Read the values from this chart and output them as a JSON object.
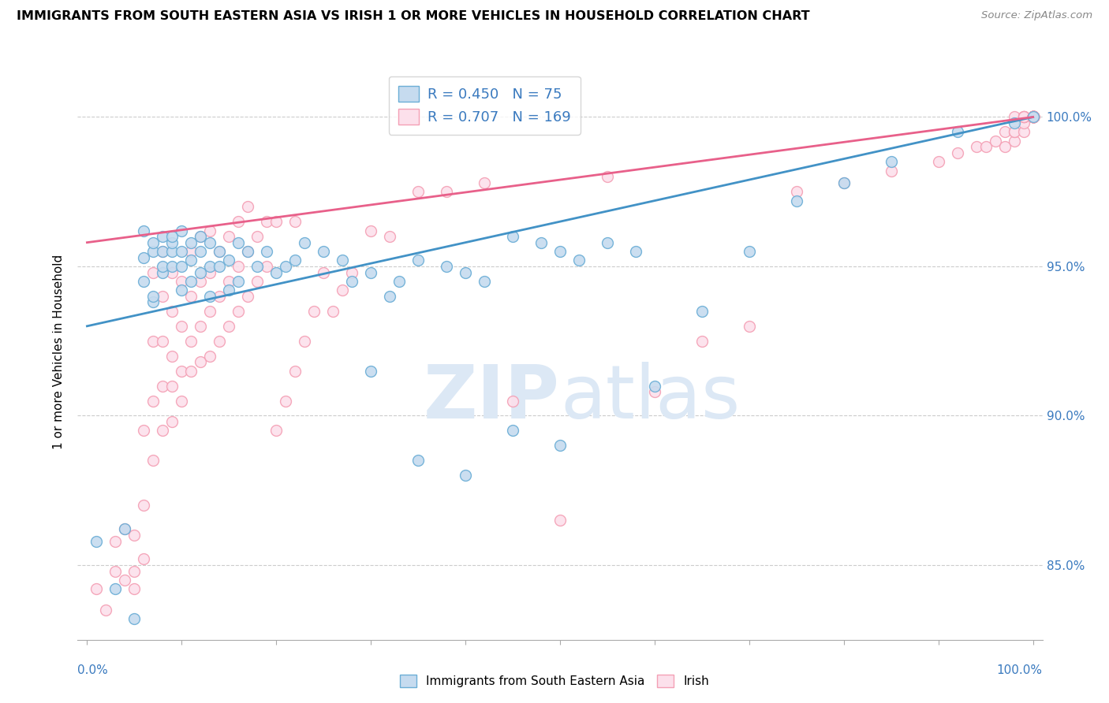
{
  "title": "IMMIGRANTS FROM SOUTH EASTERN ASIA VS IRISH 1 OR MORE VEHICLES IN HOUSEHOLD CORRELATION CHART",
  "source": "Source: ZipAtlas.com",
  "ylabel": "1 or more Vehicles in Household",
  "yticks": [
    85.0,
    90.0,
    95.0,
    100.0
  ],
  "ytick_labels": [
    "85.0%",
    "90.0%",
    "95.0%",
    "100.0%"
  ],
  "ymin": 82.5,
  "ymax": 101.8,
  "xmin": -0.01,
  "xmax": 1.01,
  "legend_blue_r": "0.450",
  "legend_blue_n": "75",
  "legend_pink_r": "0.707",
  "legend_pink_n": "169",
  "watermark_zip": "ZIP",
  "watermark_atlas": "atlas",
  "watermark_color": "#d0e4f5",
  "blue_color": "#6baed6",
  "blue_fill": "#c6dbef",
  "pink_color": "#f4a0b5",
  "pink_fill": "#fce0eb",
  "line_blue": "#4292c6",
  "line_pink": "#e8608a",
  "blue_line_x0": 0.0,
  "blue_line_y0": 93.0,
  "blue_line_x1": 1.0,
  "blue_line_y1": 100.0,
  "pink_line_x0": 0.0,
  "pink_line_y0": 95.8,
  "pink_line_x1": 1.0,
  "pink_line_y1": 100.0,
  "blue_scatter_x": [
    0.01,
    0.03,
    0.04,
    0.05,
    0.06,
    0.06,
    0.06,
    0.07,
    0.07,
    0.07,
    0.07,
    0.08,
    0.08,
    0.08,
    0.08,
    0.09,
    0.09,
    0.09,
    0.09,
    0.1,
    0.1,
    0.1,
    0.1,
    0.11,
    0.11,
    0.11,
    0.12,
    0.12,
    0.12,
    0.13,
    0.13,
    0.13,
    0.14,
    0.14,
    0.15,
    0.15,
    0.16,
    0.16,
    0.17,
    0.18,
    0.19,
    0.2,
    0.21,
    0.22,
    0.23,
    0.25,
    0.27,
    0.28,
    0.3,
    0.32,
    0.33,
    0.35,
    0.38,
    0.4,
    0.42,
    0.45,
    0.48,
    0.5,
    0.52,
    0.55,
    0.58,
    0.3,
    0.35,
    0.4,
    0.45,
    0.5,
    0.6,
    0.65,
    0.7,
    0.75,
    0.8,
    0.85,
    0.92,
    0.98,
    1.0
  ],
  "blue_scatter_y": [
    85.8,
    84.2,
    86.2,
    83.2,
    95.3,
    94.5,
    96.2,
    93.8,
    95.5,
    94.0,
    95.8,
    94.8,
    95.5,
    95.0,
    96.0,
    95.0,
    95.5,
    95.8,
    96.0,
    94.2,
    95.0,
    95.5,
    96.2,
    94.5,
    95.2,
    95.8,
    94.8,
    95.5,
    96.0,
    94.0,
    95.0,
    95.8,
    95.0,
    95.5,
    94.2,
    95.2,
    94.5,
    95.8,
    95.5,
    95.0,
    95.5,
    94.8,
    95.0,
    95.2,
    95.8,
    95.5,
    95.2,
    94.5,
    94.8,
    94.0,
    94.5,
    95.2,
    95.0,
    94.8,
    94.5,
    96.0,
    95.8,
    95.5,
    95.2,
    95.8,
    95.5,
    91.5,
    88.5,
    88.0,
    89.5,
    89.0,
    91.0,
    93.5,
    95.5,
    97.2,
    97.8,
    98.5,
    99.5,
    99.8,
    100.0
  ],
  "pink_scatter_x": [
    0.01,
    0.02,
    0.03,
    0.03,
    0.04,
    0.04,
    0.05,
    0.05,
    0.05,
    0.06,
    0.06,
    0.06,
    0.07,
    0.07,
    0.07,
    0.07,
    0.08,
    0.08,
    0.08,
    0.08,
    0.08,
    0.09,
    0.09,
    0.09,
    0.09,
    0.09,
    0.1,
    0.1,
    0.1,
    0.1,
    0.11,
    0.11,
    0.11,
    0.11,
    0.12,
    0.12,
    0.12,
    0.12,
    0.13,
    0.13,
    0.13,
    0.13,
    0.14,
    0.14,
    0.14,
    0.15,
    0.15,
    0.15,
    0.16,
    0.16,
    0.16,
    0.17,
    0.17,
    0.17,
    0.18,
    0.18,
    0.19,
    0.19,
    0.2,
    0.2,
    0.21,
    0.22,
    0.22,
    0.23,
    0.24,
    0.25,
    0.26,
    0.27,
    0.28,
    0.3,
    0.32,
    0.35,
    0.38,
    0.42,
    0.45,
    0.5,
    0.55,
    0.6,
    0.65,
    0.7,
    0.75,
    0.8,
    0.85,
    0.9,
    0.92,
    0.94,
    0.95,
    0.96,
    0.97,
    0.97,
    0.98,
    0.98,
    0.98,
    0.98,
    0.99,
    0.99,
    0.99,
    0.99,
    0.99,
    0.99,
    0.99,
    1.0,
    1.0,
    1.0,
    1.0,
    1.0,
    1.0,
    1.0,
    1.0,
    1.0,
    1.0,
    1.0,
    1.0,
    1.0,
    1.0,
    1.0,
    1.0,
    1.0,
    1.0,
    1.0,
    1.0,
    1.0,
    1.0,
    1.0,
    1.0,
    1.0,
    1.0,
    1.0,
    1.0,
    1.0,
    1.0,
    1.0,
    1.0,
    1.0,
    1.0,
    1.0,
    1.0,
    1.0,
    1.0,
    1.0,
    1.0,
    1.0,
    1.0,
    1.0,
    1.0,
    1.0,
    1.0,
    1.0,
    1.0,
    1.0,
    1.0,
    1.0,
    1.0,
    1.0,
    1.0,
    1.0,
    1.0,
    1.0,
    1.0,
    1.0,
    1.0,
    1.0,
    1.0,
    1.0
  ],
  "pink_scatter_y": [
    84.2,
    83.5,
    84.8,
    85.8,
    84.5,
    86.2,
    84.8,
    86.0,
    84.2,
    85.2,
    87.0,
    89.5,
    88.5,
    90.5,
    92.5,
    94.8,
    89.5,
    91.0,
    92.5,
    94.0,
    95.5,
    89.8,
    91.0,
    92.0,
    93.5,
    94.8,
    90.5,
    91.5,
    93.0,
    94.5,
    91.5,
    92.5,
    94.0,
    95.5,
    91.8,
    93.0,
    94.5,
    96.0,
    92.0,
    93.5,
    94.8,
    96.2,
    92.5,
    94.0,
    95.5,
    93.0,
    94.5,
    96.0,
    93.5,
    95.0,
    96.5,
    94.0,
    95.5,
    97.0,
    94.5,
    96.0,
    95.0,
    96.5,
    89.5,
    96.5,
    90.5,
    91.5,
    96.5,
    92.5,
    93.5,
    94.8,
    93.5,
    94.2,
    94.8,
    96.2,
    96.0,
    97.5,
    97.5,
    97.8,
    90.5,
    86.5,
    98.0,
    90.8,
    92.5,
    93.0,
    97.5,
    97.8,
    98.2,
    98.5,
    98.8,
    99.0,
    99.0,
    99.2,
    99.5,
    99.0,
    99.2,
    99.5,
    99.5,
    100.0,
    99.5,
    99.8,
    100.0,
    100.0,
    100.0,
    100.0,
    100.0,
    100.0,
    100.0,
    100.0,
    100.0,
    100.0,
    100.0,
    100.0,
    100.0,
    100.0,
    100.0,
    100.0,
    100.0,
    100.0,
    100.0,
    100.0,
    100.0,
    100.0,
    100.0,
    100.0,
    100.0,
    100.0,
    100.0,
    100.0,
    100.0,
    100.0,
    100.0,
    100.0,
    100.0,
    100.0,
    100.0,
    100.0,
    100.0,
    100.0,
    100.0,
    100.0,
    100.0,
    100.0,
    100.0,
    100.0,
    100.0,
    100.0,
    100.0,
    100.0,
    100.0,
    100.0,
    100.0,
    100.0,
    100.0,
    100.0,
    100.0,
    100.0,
    100.0,
    100.0,
    100.0,
    100.0,
    100.0,
    100.0,
    100.0,
    100.0,
    100.0,
    100.0,
    100.0,
    100.0
  ]
}
